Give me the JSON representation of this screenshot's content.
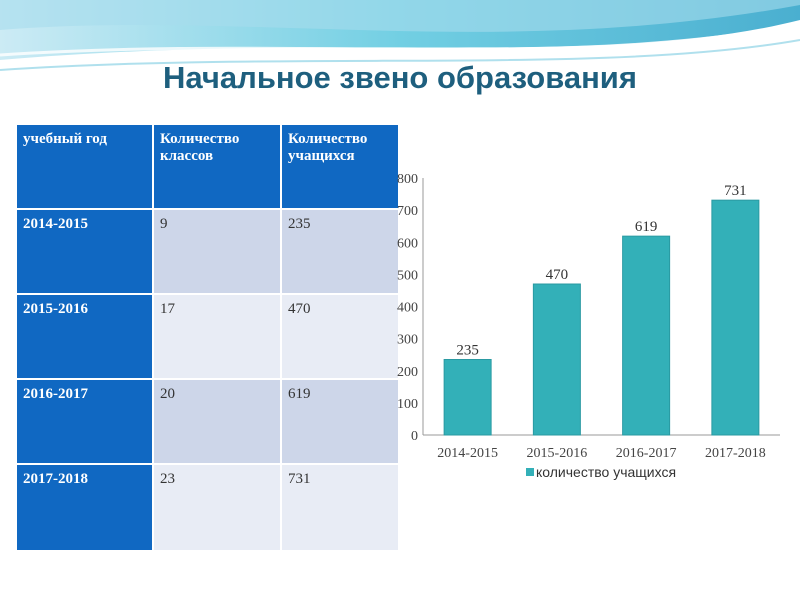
{
  "title": "Начальное звено образования",
  "table": {
    "headers": [
      "учебный год",
      "Количество классов",
      "Количество учащихся"
    ],
    "rows": [
      [
        "2014-2015",
        "9",
        "235"
      ],
      [
        "2015-2016",
        "17",
        "470"
      ],
      [
        "2016-2017",
        "20",
        "619"
      ],
      [
        "2017-2018",
        "23",
        "731"
      ]
    ]
  },
  "colors": {
    "bar": "#33b0b8",
    "header": "#1068c2",
    "title": "#1e5f7e"
  },
  "chart_data": {
    "type": "bar",
    "categories": [
      "2014-2015",
      "2015-2016",
      "2016-2017",
      "2017-2018"
    ],
    "series": [
      {
        "name": "количество учащихся",
        "values": [
          235,
          470,
          619,
          731
        ]
      }
    ],
    "yticks": [
      0,
      100,
      200,
      300,
      400,
      500,
      600,
      700,
      800
    ],
    "ylim": [
      0,
      800
    ],
    "legend": "bottom",
    "grid": false
  }
}
